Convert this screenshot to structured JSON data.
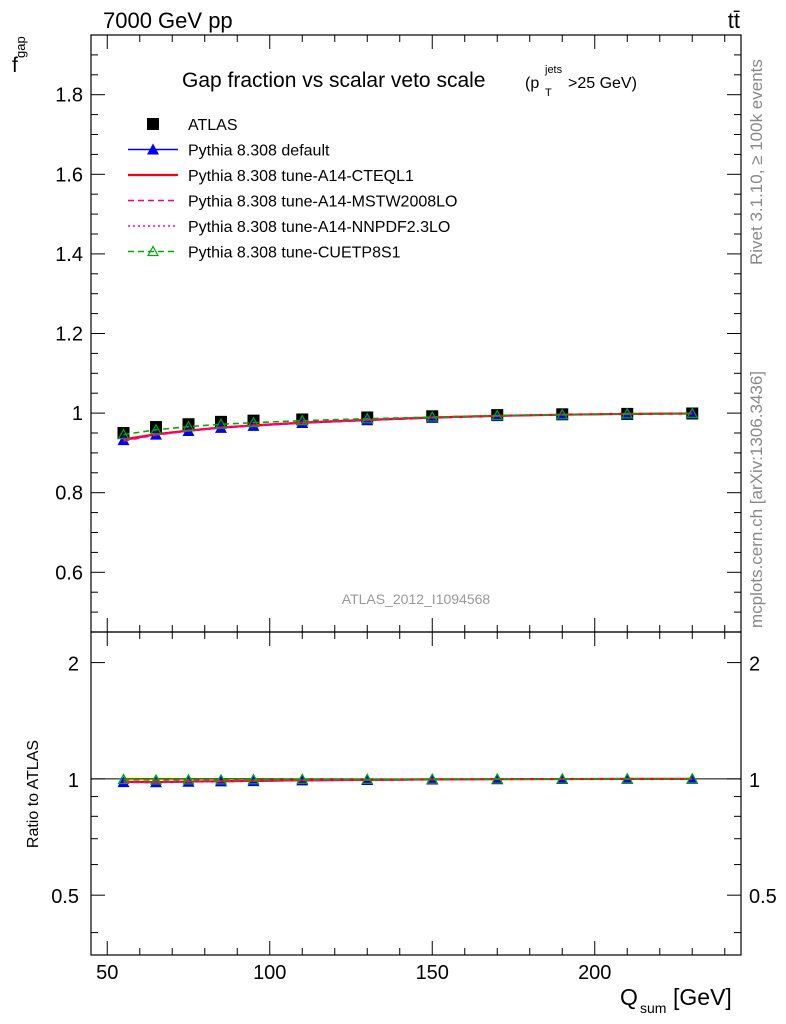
{
  "header": {
    "energy_label": "7000 GeV pp",
    "process_label": "tt̄",
    "rivet_label": "Rivet 3.1.10, ≥ 100k events",
    "site_label": "mcplots.cern.ch [arXiv:1306.3436]",
    "analysis_label": "ATLAS_2012_I1094568"
  },
  "chart_data": [
    {
      "type": "scatter",
      "title": "Gap fraction vs scalar veto scale",
      "title_cut": "(p",
      "title_cut_sup": "jets",
      "title_cut_sub": "T",
      "title_cut_tail": ">25 GeV)",
      "ylabel": "f",
      "ylabel_sub": "gap",
      "xlim": [
        45,
        245
      ],
      "ylim": [
        0.45,
        1.95
      ],
      "yticks": [
        0.6,
        0.8,
        1.0,
        1.2,
        1.4,
        1.6,
        1.8
      ],
      "ytick_labels": [
        "0.6",
        "0.8",
        "1",
        "1.2",
        "1.4",
        "1.6",
        "1.8"
      ],
      "legend_position": "top-left",
      "x": [
        55,
        65,
        75,
        85,
        95,
        110,
        130,
        150,
        170,
        190,
        210,
        230
      ],
      "series": [
        {
          "name": "ATLAS",
          "color": "#000000",
          "marker": "square",
          "values": [
            0.95,
            0.965,
            0.972,
            0.978,
            0.981,
            0.984,
            0.989,
            0.992,
            0.995,
            0.997,
            0.998,
            0.999
          ]
        },
        {
          "name": "Pythia 8.308 default",
          "color": "#0000ff",
          "marker": "triangle",
          "line": "solid",
          "values": [
            0.932,
            0.946,
            0.955,
            0.963,
            0.968,
            0.975,
            0.982,
            0.988,
            0.993,
            0.996,
            0.998,
            0.999
          ]
        },
        {
          "name": "Pythia 8.308 tune-A14-CTEQL1",
          "color": "#ff0000",
          "marker": "none",
          "line": "solid",
          "values": [
            0.934,
            0.947,
            0.956,
            0.964,
            0.969,
            0.976,
            0.983,
            0.989,
            0.993,
            0.996,
            0.998,
            0.999
          ]
        },
        {
          "name": "Pythia 8.308 tune-A14-MSTW2008LO",
          "color": "#ff0066",
          "marker": "none",
          "line": "dashed",
          "values": [
            0.93,
            0.945,
            0.955,
            0.963,
            0.968,
            0.975,
            0.982,
            0.988,
            0.993,
            0.996,
            0.998,
            0.999
          ]
        },
        {
          "name": "Pythia 8.308 tune-A14-NNPDF2.3LO",
          "color": "#ff00cc",
          "marker": "none",
          "line": "dotted",
          "values": [
            0.932,
            0.946,
            0.956,
            0.964,
            0.969,
            0.976,
            0.983,
            0.989,
            0.993,
            0.996,
            0.998,
            0.999
          ]
        },
        {
          "name": "Pythia 8.308 tune-CUETP8S1",
          "color": "#00aa00",
          "marker": "open-triangle",
          "line": "dashed",
          "values": [
            0.946,
            0.958,
            0.966,
            0.972,
            0.976,
            0.981,
            0.986,
            0.99,
            0.994,
            0.996,
            0.998,
            0.999
          ]
        }
      ]
    },
    {
      "type": "scatter",
      "title": "",
      "ylabel": "Ratio to ATLAS",
      "xlabel": "Q",
      "xlabel_sub": "sum",
      "xlabel_unit": " [GeV]",
      "xlim": [
        45,
        245
      ],
      "xticks": [
        50,
        100,
        150,
        200
      ],
      "xtick_labels": [
        "50",
        "100",
        "150",
        "200"
      ],
      "ylim": [
        0.35,
        2.4
      ],
      "log_y": true,
      "yticks": [
        0.5,
        1,
        2
      ],
      "ytick_labels": [
        "0.5",
        "1",
        "2"
      ],
      "x": [
        55,
        65,
        75,
        85,
        95,
        110,
        130,
        150,
        170,
        190,
        210,
        230
      ],
      "band": {
        "color": "#ffff00",
        "lower": [
          0.992,
          0.993,
          0.994,
          0.995,
          0.995,
          0.996,
          0.997,
          0.997,
          0.998,
          0.998,
          0.999,
          0.999
        ],
        "upper": [
          1.008,
          1.007,
          1.006,
          1.005,
          1.005,
          1.004,
          1.003,
          1.003,
          1.002,
          1.002,
          1.001,
          1.001
        ]
      },
      "series": [
        {
          "name": "Pythia 8.308 default",
          "color": "#0000ff",
          "marker": "triangle",
          "line": "solid",
          "values": [
            0.981,
            0.98,
            0.983,
            0.985,
            0.987,
            0.991,
            0.993,
            0.996,
            0.998,
            0.999,
            1.0,
            1.0
          ]
        },
        {
          "name": "Pythia 8.308 tune-A14-CTEQL1",
          "color": "#ff0000",
          "marker": "none",
          "line": "solid",
          "values": [
            0.983,
            0.981,
            0.984,
            0.986,
            0.988,
            0.992,
            0.994,
            0.997,
            0.998,
            0.999,
            1.0,
            1.0
          ]
        },
        {
          "name": "Pythia 8.308 tune-A14-MSTW2008LO",
          "color": "#ff0066",
          "marker": "none",
          "line": "dashed",
          "values": [
            0.979,
            0.979,
            0.983,
            0.985,
            0.987,
            0.991,
            0.993,
            0.996,
            0.998,
            0.999,
            1.0,
            1.0
          ]
        },
        {
          "name": "Pythia 8.308 tune-A14-NNPDF2.3LO",
          "color": "#ff00cc",
          "marker": "none",
          "line": "dotted",
          "values": [
            0.981,
            0.98,
            0.984,
            0.986,
            0.988,
            0.992,
            0.994,
            0.997,
            0.998,
            0.999,
            1.0,
            1.0
          ]
        },
        {
          "name": "Pythia 8.308 tune-CUETP8S1",
          "color": "#00aa00",
          "marker": "open-triangle",
          "line": "dashed",
          "values": [
            0.996,
            0.993,
            0.994,
            0.994,
            0.995,
            0.997,
            0.997,
            0.998,
            0.999,
            0.999,
            1.0,
            1.0
          ]
        }
      ]
    }
  ]
}
